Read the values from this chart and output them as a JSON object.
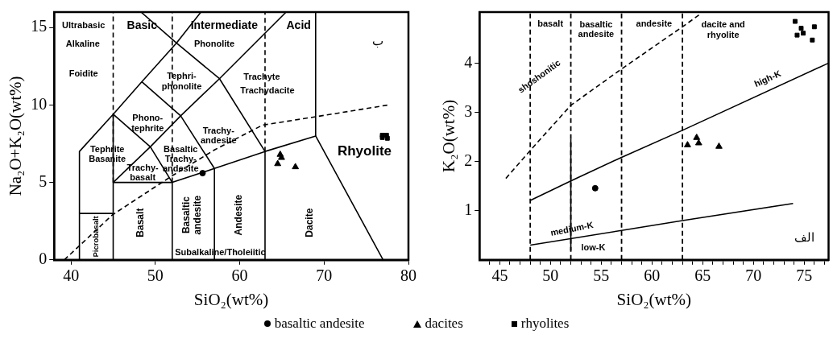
{
  "chart_data": [
    {
      "type": "scatter",
      "xlabel": "SiO₂(wt%)",
      "ylabel": "Na₂O+K₂O(wt%)",
      "xlim": [
        38,
        80
      ],
      "ylim": [
        0,
        16
      ],
      "xticks": [
        40,
        50,
        60,
        70,
        80
      ],
      "yticks": [
        0,
        5,
        10,
        15
      ],
      "legend": "bottom",
      "annotations": [
        "Ultrabasic",
        "Basic",
        "Intermediate",
        "Acid",
        "Alkaline",
        "Phonolite",
        "Foidite",
        "Tephri-\nphonolite",
        "Trachyte",
        "Trachydacite",
        "Phono-\ntephrite",
        "Trachy-\nandesite",
        "Tephrite\nBasanite",
        "Basaltic\nTrachy-\nandesite",
        "Trachy-\nbasalt",
        "Rhyolite",
        "Picrobasalt",
        "Basalt",
        "Basaltic\nandesite",
        "Andesite",
        "Dacite",
        "Subalkaline/Tholeiitic",
        "ب"
      ],
      "series": [
        {
          "type": "line",
          "color": "#000000",
          "line_style": "solid",
          "marker": "none",
          "x": [
            41,
            41,
            45,
            45,
            52,
            57,
            63,
            69,
            77
          ],
          "values": [
            0,
            7,
            9.4,
            5,
            5,
            5.9,
            7,
            8,
            0
          ]
        },
        {
          "type": "line",
          "color": "#000000",
          "line_style": "solid",
          "marker": "none",
          "x": [
            41,
            45
          ],
          "values": [
            3,
            3
          ]
        },
        {
          "type": "line",
          "color": "#000000",
          "line_style": "solid",
          "marker": "none",
          "x": [
            45,
            45
          ],
          "values": [
            0,
            5
          ]
        },
        {
          "type": "line",
          "color": "#000000",
          "line_style": "solid",
          "marker": "none",
          "x": [
            52,
            52
          ],
          "values": [
            0,
            5
          ]
        },
        {
          "type": "line",
          "color": "#000000",
          "line_style": "solid",
          "marker": "none",
          "x": [
            57,
            57
          ],
          "values": [
            0,
            5.9
          ]
        },
        {
          "type": "line",
          "color": "#000000",
          "line_style": "solid",
          "marker": "none",
          "x": [
            63,
            63
          ],
          "values": [
            0,
            7
          ]
        },
        {
          "type": "line",
          "color": "#000000",
          "line_style": "solid",
          "marker": "none",
          "x": [
            69,
            69
          ],
          "values": [
            8,
            16
          ]
        },
        {
          "type": "line",
          "color": "#000000",
          "line_style": "solid",
          "marker": "none",
          "x": [
            45,
            48.4,
            52.5,
            55.4
          ],
          "values": [
            9.4,
            11.5,
            14,
            16
          ]
        },
        {
          "type": "line",
          "color": "#000000",
          "line_style": "solid",
          "marker": "none",
          "x": [
            48.3,
            52.5,
            57.6,
            63
          ],
          "values": [
            16,
            14,
            11.7,
            7
          ]
        },
        {
          "type": "line",
          "color": "#000000",
          "line_style": "solid",
          "marker": "none",
          "x": [
            45,
            49.4,
            52
          ],
          "values": [
            9.4,
            7.3,
            5
          ]
        },
        {
          "type": "line",
          "color": "#000000",
          "line_style": "solid",
          "marker": "none",
          "x": [
            45,
            49.4,
            53,
            57.6,
            65.5
          ],
          "values": [
            5,
            7.3,
            9.3,
            11.7,
            16
          ]
        },
        {
          "type": "line",
          "color": "#000000",
          "line_style": "solid",
          "marker": "none",
          "x": [
            48.4,
            53,
            57
          ],
          "values": [
            11.5,
            9.3,
            5.9
          ]
        },
        {
          "type": "line",
          "color": "#000000",
          "line_style": "dashed",
          "marker": "none",
          "x": [
            45,
            45
          ],
          "values": [
            5,
            16
          ]
        },
        {
          "type": "line",
          "color": "#000000",
          "line_style": "dashed",
          "marker": "none",
          "x": [
            52,
            52
          ],
          "values": [
            5,
            16
          ]
        },
        {
          "type": "line",
          "color": "#000000",
          "line_style": "dashed",
          "marker": "none",
          "x": [
            63,
            63
          ],
          "values": [
            7,
            16
          ]
        },
        {
          "type": "line",
          "color": "#000000",
          "line_style": "dashed",
          "marker": "none",
          "x": [
            39.2,
            44.9,
            51.9,
            57,
            62.7,
            69.1,
            77.6
          ],
          "values": [
            0,
            2.9,
            5.4,
            7.1,
            8.7,
            9.25,
            10
          ]
        },
        {
          "name": "basaltic andesite",
          "color": "#000000",
          "marker": "circle",
          "x": [
            55.6
          ],
          "values": [
            5.6
          ]
        },
        {
          "name": "dacites",
          "color": "#000000",
          "marker": "triangle",
          "x": [
            64.5,
            64.8,
            64.95,
            66.6
          ],
          "values": [
            6.2,
            6.8,
            6.6,
            6.0
          ]
        },
        {
          "name": "rhyolites",
          "color": "#000000",
          "marker": "square",
          "x": [
            76.9,
            77.4,
            77.5,
            76.9
          ],
          "values": [
            7.9,
            8.05,
            7.85,
            8.05
          ]
        }
      ]
    },
    {
      "type": "scatter",
      "xlabel": "SiO₂(wt%)",
      "ylabel": "K₂O(wt%)",
      "xlim": [
        43,
        77.4
      ],
      "ylim": [
        0,
        5.05
      ],
      "xticks": [
        {
          "value": 44,
          "label": null
        },
        45,
        {
          "value": 46,
          "label": null
        },
        {
          "value": 47,
          "label": null
        },
        {
          "value": 48,
          "label": null
        },
        {
          "value": 49,
          "label": null
        },
        50,
        {
          "value": 51,
          "label": null
        },
        {
          "value": 52,
          "label": null
        },
        {
          "value": 53,
          "label": null
        },
        {
          "value": 54,
          "label": null
        },
        55,
        {
          "value": 56,
          "label": null
        },
        {
          "value": 57,
          "label": null
        },
        {
          "value": 58,
          "label": null
        },
        {
          "value": 59,
          "label": null
        },
        60,
        {
          "value": 61,
          "label": null
        },
        {
          "value": 62,
          "label": null
        },
        {
          "value": 63,
          "label": null
        },
        {
          "value": 64,
          "label": null
        },
        65,
        {
          "value": 66,
          "label": null
        },
        {
          "value": 67,
          "label": null
        },
        {
          "value": 68,
          "label": null
        },
        {
          "value": 69,
          "label": null
        },
        70,
        {
          "value": 71,
          "label": null
        },
        {
          "value": 72,
          "label": null
        },
        {
          "value": 73,
          "label": null
        },
        {
          "value": 74,
          "label": null
        },
        75,
        {
          "value": 76,
          "label": null
        },
        {
          "value": 77,
          "label": null
        }
      ],
      "yticks": [
        1,
        2,
        3,
        4
      ],
      "annotations": [
        "basalt",
        "basaltic\nandesite",
        "andesite",
        "dacite and\nrhyolite",
        "shoshonitic",
        "high-K",
        "medium-K",
        "low-K",
        "الف"
      ],
      "ref_lines": [
        {
          "axis": "x",
          "value": 48,
          "color": "#000000",
          "line_style": "dashed"
        },
        {
          "axis": "x",
          "value": 52,
          "color": "#000000",
          "line_style": "dashed"
        },
        {
          "axis": "x",
          "value": 57,
          "color": "#000000",
          "line_style": "dashed"
        },
        {
          "axis": "x",
          "value": 63,
          "color": "#000000",
          "line_style": "dashed"
        }
      ],
      "series": [
        {
          "type": "line",
          "color": "#000000",
          "line_style": "dashed",
          "marker": "none",
          "x": [
            45.6,
            48,
            52,
            57,
            63,
            64.7
          ],
          "values": [
            1.66,
            2.23,
            3.15,
            3.89,
            4.75,
            5.0
          ]
        },
        {
          "type": "line",
          "color": "#000000",
          "line_style": "solid",
          "marker": "none",
          "x": [
            48,
            52,
            57,
            63,
            77.4
          ],
          "values": [
            1.21,
            1.61,
            2.09,
            2.64,
            4.01
          ]
        },
        {
          "type": "line",
          "color": "#000000",
          "line_style": "solid",
          "marker": "none",
          "x": [
            48,
            57,
            63,
            73.9
          ],
          "values": [
            0.3,
            0.6,
            0.8,
            1.15
          ]
        },
        {
          "type": "line",
          "color": "#000000",
          "line_style": "solid",
          "marker": "none",
          "x": [
            52,
            52
          ],
          "values": [
            0.19,
            2.46
          ]
        },
        {
          "color": "#000000",
          "marker": "circle",
          "x": [
            54.4
          ],
          "values": [
            1.46
          ]
        },
        {
          "color": "#000000",
          "marker": "triangle",
          "x": [
            63.5,
            64.4,
            64.6,
            66.6
          ],
          "values": [
            2.34,
            2.49,
            2.38,
            2.31
          ]
        },
        {
          "color": "#000000",
          "marker": "square",
          "x": [
            74.1,
            74.7,
            74.9,
            74.3,
            76.0,
            75.8
          ],
          "values": [
            4.86,
            4.72,
            4.62,
            4.58,
            4.75,
            4.48
          ]
        }
      ]
    }
  ]
}
